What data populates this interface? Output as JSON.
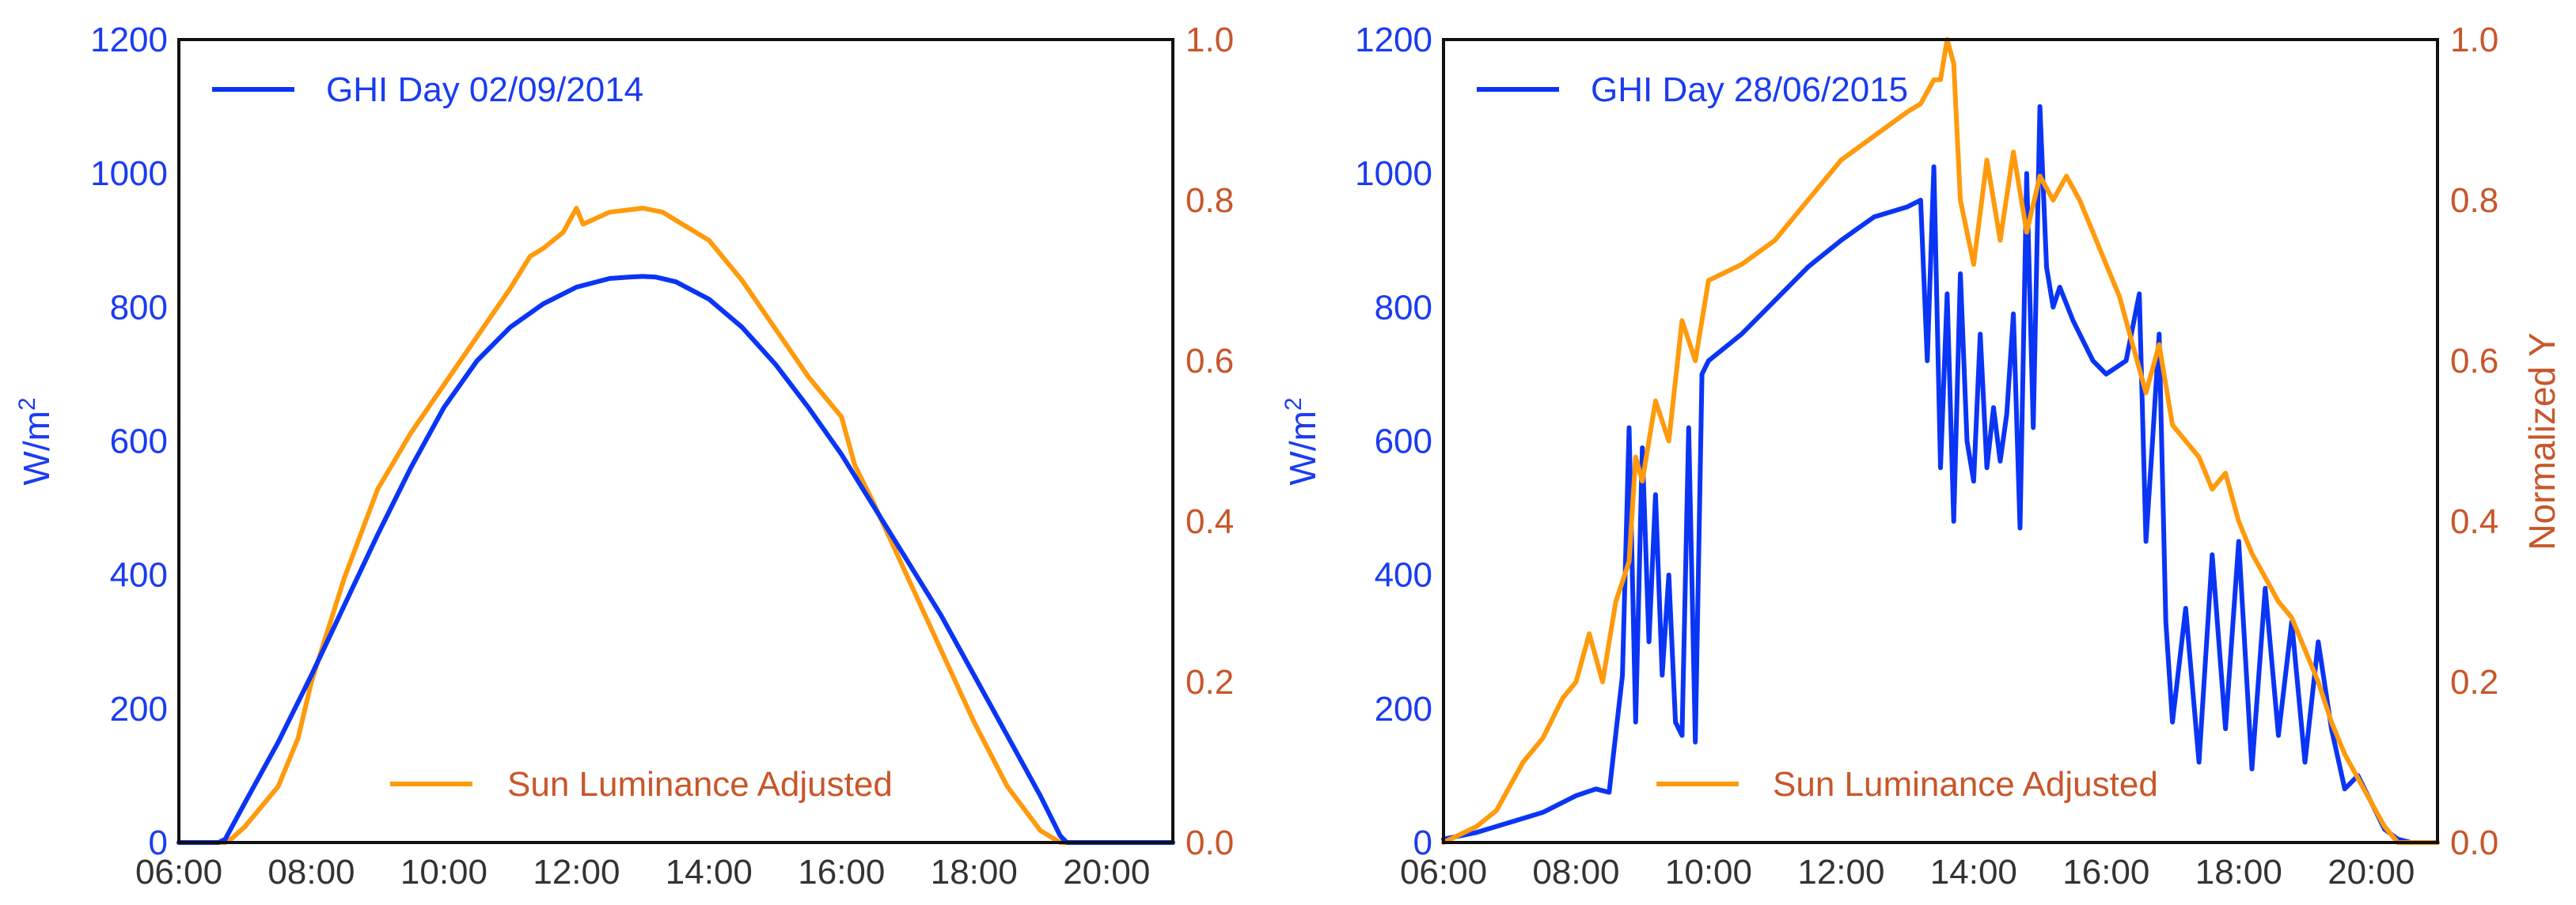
{
  "colors": {
    "ghi": "#0a35f5",
    "luminance": "#ff9a0d",
    "left_axis": "#1a3cf0",
    "right_axis": "#c8562a",
    "frame": "#111111",
    "xtick": "#333333"
  },
  "chart_data": [
    {
      "type": "line",
      "xlabel": "",
      "ylabel_left": "W/m²",
      "ylabel_left_base": "W/m",
      "ylabel_left_sup": "2",
      "ylabel_right": "",
      "xlim": [
        6.0,
        21.0
      ],
      "ylim_left": [
        0,
        1200
      ],
      "ylim_right": [
        0.0,
        1.0
      ],
      "x_ticks": [
        "06:00",
        "08:00",
        "10:00",
        "12:00",
        "14:00",
        "16:00",
        "18:00",
        "20:00"
      ],
      "y_ticks_left": [
        "0",
        "200",
        "400",
        "600",
        "800",
        "1000",
        "1200"
      ],
      "y_ticks_right": [
        "0.0",
        "0.2",
        "0.4",
        "0.6",
        "0.8",
        "1.0"
      ],
      "legend_ghi_label": "GHI Day 02/09/2014",
      "legend_lum_label": "Sun Luminance Adjusted",
      "series": [
        {
          "name": "GHI Day 02/09/2014",
          "axis": "left",
          "x": [
            6.0,
            6.6,
            6.7,
            7.0,
            7.5,
            8.0,
            8.5,
            9.0,
            9.5,
            10.0,
            10.5,
            11.0,
            11.5,
            12.0,
            12.5,
            12.8,
            13.0,
            13.2,
            13.5,
            14.0,
            14.5,
            15.0,
            15.5,
            16.0,
            16.5,
            17.0,
            17.5,
            18.0,
            18.5,
            19.0,
            19.3,
            19.4,
            21.0
          ],
          "values": [
            0,
            0,
            5,
            60,
            150,
            250,
            355,
            460,
            560,
            650,
            720,
            770,
            805,
            830,
            843,
            845,
            846,
            845,
            838,
            812,
            770,
            715,
            650,
            580,
            500,
            420,
            340,
            250,
            160,
            70,
            10,
            0,
            0
          ]
        },
        {
          "name": "Sun Luminance Adjusted",
          "axis": "right",
          "x": [
            6.0,
            6.7,
            6.8,
            7.0,
            7.5,
            7.8,
            8.0,
            8.5,
            9.0,
            9.5,
            10.0,
            10.5,
            11.0,
            11.3,
            11.5,
            11.8,
            12.0,
            12.1,
            12.5,
            13.0,
            13.3,
            13.5,
            14.0,
            14.5,
            15.0,
            15.5,
            15.8,
            16.0,
            16.2,
            16.5,
            17.0,
            17.5,
            18.0,
            18.5,
            19.0,
            19.3,
            21.0
          ],
          "values": [
            0.0,
            0.0,
            0.005,
            0.02,
            0.07,
            0.13,
            0.2,
            0.33,
            0.44,
            0.51,
            0.57,
            0.63,
            0.69,
            0.73,
            0.74,
            0.76,
            0.79,
            0.77,
            0.785,
            0.79,
            0.785,
            0.775,
            0.75,
            0.7,
            0.64,
            0.58,
            0.55,
            0.53,
            0.47,
            0.42,
            0.33,
            0.24,
            0.15,
            0.07,
            0.015,
            0.0,
            0.0
          ]
        }
      ]
    },
    {
      "type": "line",
      "xlabel": "",
      "ylabel_left": "W/m²",
      "ylabel_left_base": "W/m",
      "ylabel_left_sup": "2",
      "ylabel_right": "Normalized Y",
      "xlim": [
        6.0,
        21.0
      ],
      "ylim_left": [
        0,
        1200
      ],
      "ylim_right": [
        0.0,
        1.0
      ],
      "x_ticks": [
        "06:00",
        "08:00",
        "10:00",
        "12:00",
        "14:00",
        "16:00",
        "18:00",
        "20:00"
      ],
      "y_ticks_left": [
        "0",
        "200",
        "400",
        "600",
        "800",
        "1000",
        "1200"
      ],
      "y_ticks_right": [
        "0.0",
        "0.2",
        "0.4",
        "0.6",
        "0.8",
        "1.0"
      ],
      "legend_ghi_label": "GHI Day 28/06/2015",
      "legend_lum_label": "Sun Luminance Adjusted",
      "series": [
        {
          "name": "GHI Day 28/06/2015",
          "axis": "left",
          "x": [
            6.0,
            6.5,
            7.0,
            7.5,
            8.0,
            8.3,
            8.5,
            8.7,
            8.8,
            8.9,
            9.0,
            9.1,
            9.2,
            9.3,
            9.4,
            9.5,
            9.6,
            9.7,
            9.8,
            9.9,
            10.0,
            10.5,
            11.0,
            11.5,
            12.0,
            12.5,
            13.0,
            13.2,
            13.3,
            13.4,
            13.5,
            13.6,
            13.7,
            13.8,
            13.9,
            14.0,
            14.1,
            14.2,
            14.3,
            14.4,
            14.5,
            14.6,
            14.7,
            14.8,
            14.9,
            15.0,
            15.1,
            15.2,
            15.3,
            15.5,
            15.8,
            16.0,
            16.3,
            16.5,
            16.6,
            16.7,
            16.8,
            16.9,
            17.0,
            17.2,
            17.4,
            17.6,
            17.8,
            18.0,
            18.2,
            18.4,
            18.6,
            18.8,
            19.0,
            19.2,
            19.4,
            19.6,
            19.8,
            20.0,
            20.2,
            20.4,
            20.6,
            21.0
          ],
          "values": [
            5,
            15,
            30,
            45,
            70,
            80,
            75,
            250,
            620,
            180,
            590,
            300,
            520,
            250,
            400,
            180,
            160,
            620,
            150,
            700,
            720,
            760,
            810,
            860,
            900,
            935,
            950,
            960,
            720,
            1010,
            560,
            820,
            480,
            850,
            600,
            540,
            760,
            560,
            650,
            570,
            640,
            790,
            470,
            1000,
            620,
            1100,
            860,
            800,
            830,
            780,
            720,
            700,
            720,
            820,
            450,
            600,
            760,
            330,
            180,
            350,
            120,
            430,
            170,
            450,
            110,
            380,
            160,
            330,
            120,
            300,
            170,
            80,
            100,
            60,
            20,
            5,
            0,
            0
          ]
        },
        {
          "name": "Sun Luminance Adjusted",
          "axis": "right",
          "x": [
            6.0,
            6.5,
            6.8,
            7.0,
            7.2,
            7.5,
            7.8,
            8.0,
            8.2,
            8.4,
            8.6,
            8.8,
            8.9,
            9.0,
            9.2,
            9.4,
            9.6,
            9.8,
            10.0,
            10.5,
            11.0,
            11.5,
            12.0,
            12.5,
            13.0,
            13.2,
            13.4,
            13.5,
            13.6,
            13.7,
            13.8,
            14.0,
            14.2,
            14.4,
            14.6,
            14.8,
            15.0,
            15.2,
            15.4,
            15.6,
            15.8,
            16.0,
            16.2,
            16.4,
            16.6,
            16.8,
            17.0,
            17.2,
            17.4,
            17.6,
            17.8,
            18.0,
            18.2,
            18.4,
            18.6,
            18.8,
            19.0,
            19.2,
            19.4,
            19.6,
            19.8,
            20.0,
            20.2,
            20.4,
            20.6,
            21.0
          ],
          "values": [
            0.0,
            0.02,
            0.04,
            0.07,
            0.1,
            0.13,
            0.18,
            0.2,
            0.26,
            0.2,
            0.3,
            0.35,
            0.48,
            0.45,
            0.55,
            0.5,
            0.65,
            0.6,
            0.7,
            0.72,
            0.75,
            0.8,
            0.85,
            0.88,
            0.91,
            0.92,
            0.95,
            0.95,
            1.0,
            0.97,
            0.8,
            0.72,
            0.85,
            0.75,
            0.86,
            0.76,
            0.83,
            0.8,
            0.83,
            0.8,
            0.76,
            0.72,
            0.68,
            0.62,
            0.56,
            0.62,
            0.52,
            0.5,
            0.48,
            0.44,
            0.46,
            0.4,
            0.36,
            0.33,
            0.3,
            0.28,
            0.24,
            0.2,
            0.15,
            0.11,
            0.08,
            0.05,
            0.02,
            0.0,
            0.0,
            0.0
          ]
        }
      ]
    }
  ]
}
